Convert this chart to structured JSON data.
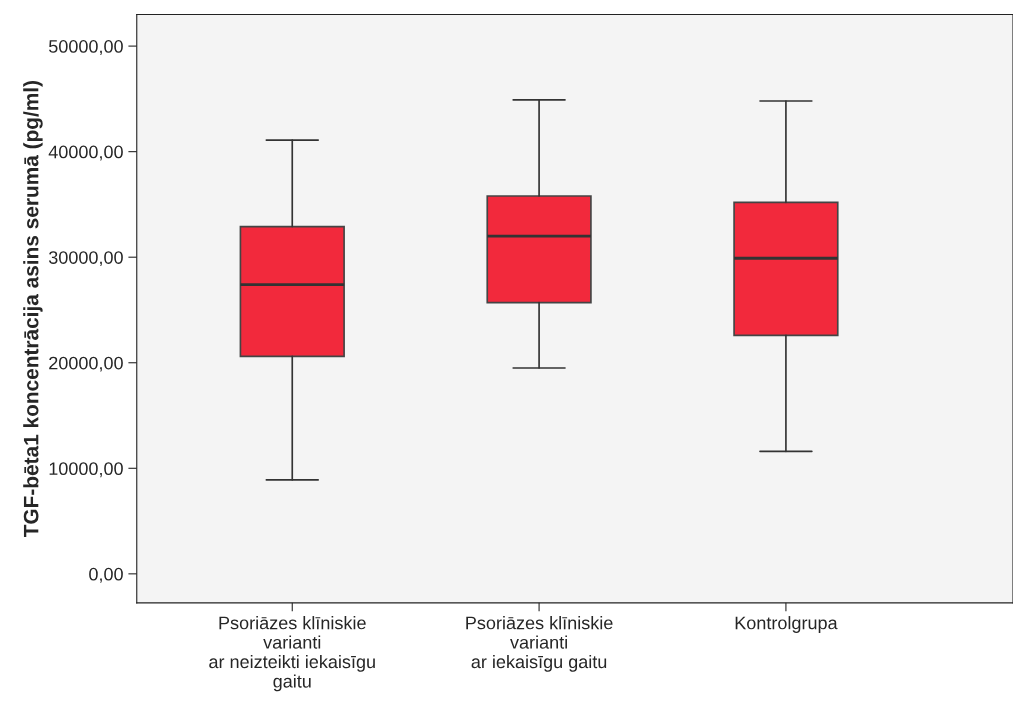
{
  "chart_data": {
    "type": "box",
    "ylabel": "TGF-bēta1 koncentrācija asins serumā (pg/ml)",
    "categories": [
      "Psoriāzes klīniskie\nvarianti\nar neizteikti iekaisīgu\ngaitu",
      "Psoriāzes klīniskie\nvarianti\nar iekaisīgu gaitu",
      "Kontrolgrupa"
    ],
    "boxes": [
      {
        "low": 8900,
        "q1": 20600,
        "median": 27400,
        "q3": 32900,
        "high": 41100
      },
      {
        "low": 19500,
        "q1": 25700,
        "median": 32000,
        "q3": 35800,
        "high": 44900
      },
      {
        "low": 11600,
        "q1": 22600,
        "median": 29900,
        "q3": 35200,
        "high": 44800
      }
    ],
    "color": "#f2293c",
    "ylim": [
      -2750,
      53000
    ],
    "yticks": [
      {
        "value": 0,
        "label": "0,00"
      },
      {
        "value": 10000,
        "label": "10000,00"
      },
      {
        "value": 20000,
        "label": "20000,00"
      },
      {
        "value": 30000,
        "label": "30000,00"
      },
      {
        "value": 40000,
        "label": "40000,00"
      },
      {
        "value": 50000,
        "label": "50000,00"
      }
    ],
    "grid": false
  }
}
